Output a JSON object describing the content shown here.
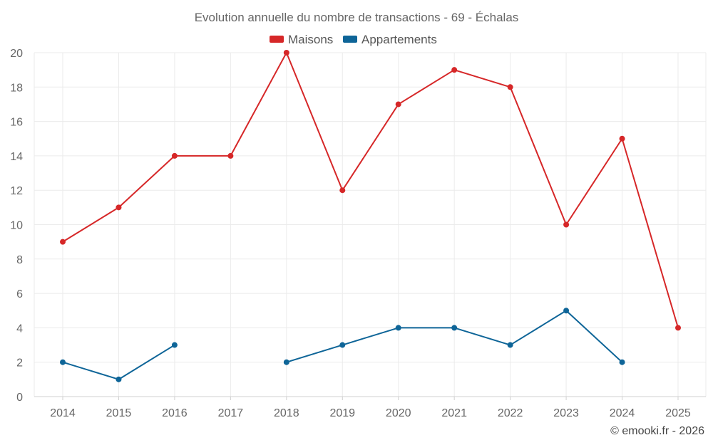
{
  "chart_data": {
    "type": "line",
    "title": "Evolution annuelle du nombre de transactions - 69 - Échalas",
    "categories": [
      "2014",
      "2015",
      "2016",
      "2017",
      "2018",
      "2019",
      "2020",
      "2021",
      "2022",
      "2023",
      "2024",
      "2025"
    ],
    "series": [
      {
        "name": "Maisons",
        "color": "#d62728",
        "values": [
          9,
          11,
          14,
          14,
          20,
          12,
          17,
          19,
          18,
          10,
          15,
          4
        ]
      },
      {
        "name": "Appartements",
        "color": "#0e6598",
        "values": [
          2,
          1,
          3,
          null,
          2,
          3,
          4,
          4,
          3,
          5,
          2,
          null
        ]
      }
    ],
    "ylim": [
      0,
      20
    ],
    "yticks": [
      "0",
      "2",
      "4",
      "6",
      "8",
      "10",
      "12",
      "14",
      "16",
      "18",
      "20"
    ],
    "xlabel": "",
    "ylabel": "",
    "grid": true,
    "legend": "top-center"
  },
  "credit": "© emooki.fr - 2026"
}
